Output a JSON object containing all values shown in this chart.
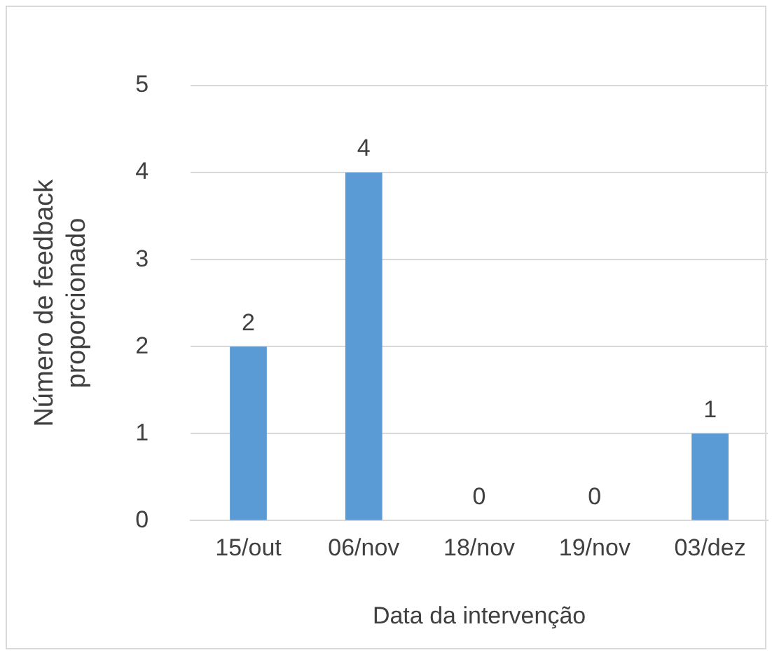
{
  "chart_data": {
    "type": "bar",
    "categories": [
      "15/out",
      "06/nov",
      "18/nov",
      "19/nov",
      "03/dez"
    ],
    "values": [
      2,
      4,
      0,
      0,
      1
    ],
    "color": "#5b9bd5",
    "xlabel": "Data da intervenção",
    "ylabel": "Número de feedback proporcionado",
    "ylim": [
      0,
      5
    ],
    "yticks": [
      0,
      1,
      2,
      3,
      4,
      5
    ],
    "grid": "y",
    "data_labels": true,
    "legend": false
  }
}
